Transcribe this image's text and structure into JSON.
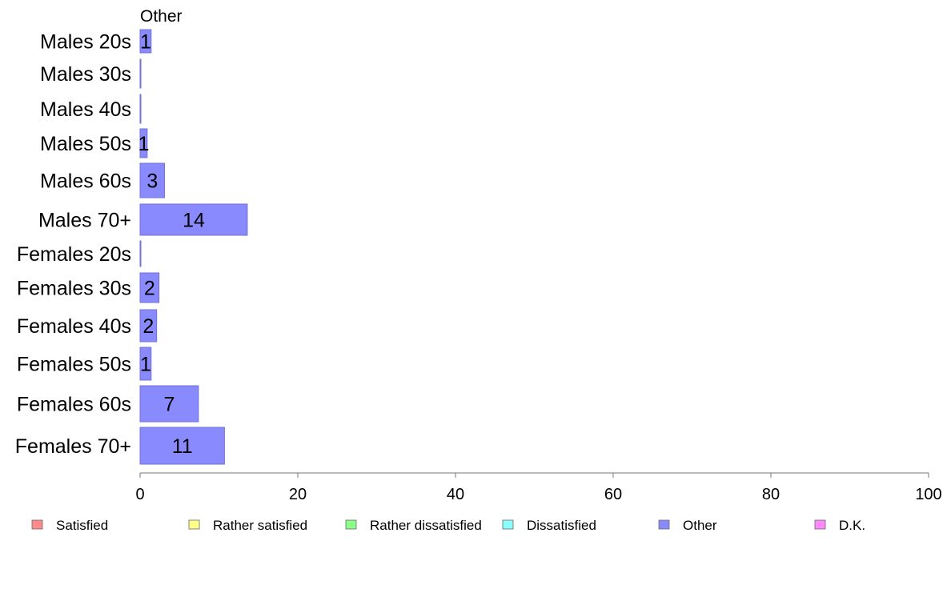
{
  "chart_data": {
    "type": "bar",
    "orientation": "horizontal",
    "title": "Other",
    "categories": [
      "Males 20s",
      "Males 30s",
      "Males 40s",
      "Males 50s",
      "Males 60s",
      "Males 70+",
      "Females 20s",
      "Females 30s",
      "Females 40s",
      "Females 50s",
      "Females 60s",
      "Females 70+"
    ],
    "series": [
      {
        "name": "Other",
        "color": "#8a8aff",
        "values": [
          1.4,
          0,
          0,
          0.9,
          3.1,
          13.6,
          0,
          2.4,
          2.1,
          1.4,
          7.4,
          10.7
        ]
      }
    ],
    "data_labels": [
      "1",
      "",
      "",
      "1",
      "3",
      "14",
      "",
      "2",
      "2",
      "1",
      "7",
      "11"
    ],
    "xlim": [
      0,
      100
    ],
    "xticks": [
      "0",
      "20",
      "40",
      "60",
      "80",
      "100"
    ],
    "legend": {
      "placement": "bottom",
      "items": [
        {
          "label": "Satisfied",
          "color": "#ff8a8a"
        },
        {
          "label": "Rather satisfied",
          "color": "#ffff8a"
        },
        {
          "label": "Rather dissatisfied",
          "color": "#8aff8a"
        },
        {
          "label": "Dissatisfied",
          "color": "#8affff"
        },
        {
          "label": "Other",
          "color": "#8a8aff"
        },
        {
          "label": "D.K.",
          "color": "#ff8aff"
        }
      ]
    },
    "grid": false
  }
}
